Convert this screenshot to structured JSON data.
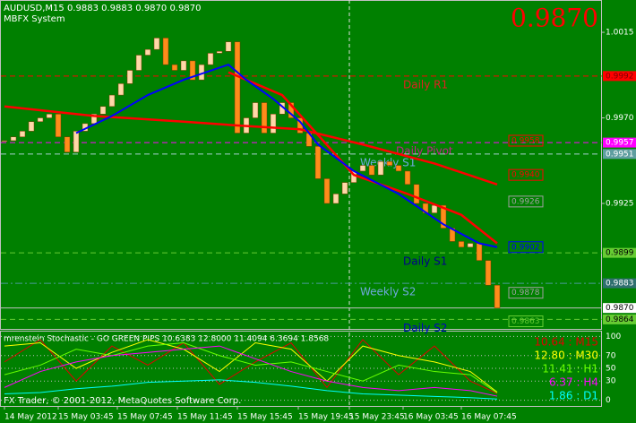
{
  "header": {
    "symbol_line": "AUDUSD,M15  0.9883 0.9883 0.9870 0.9870",
    "system": "MBFX System",
    "big_price": "0.9870"
  },
  "chart_data": [
    {
      "type": "candlestick",
      "x": [
        0,
        1,
        2,
        3,
        4,
        5,
        6,
        7,
        8,
        9,
        10,
        11,
        12,
        13,
        14,
        15,
        16,
        17,
        18,
        19,
        20,
        21,
        22,
        23,
        24,
        25,
        26,
        27,
        28,
        29,
        30,
        31,
        32,
        33,
        34,
        35,
        36,
        37,
        38,
        39,
        40,
        41,
        42,
        43,
        44,
        45,
        46,
        47,
        48,
        49,
        50,
        51,
        52,
        53,
        54,
        55
      ],
      "close": [
        0.9958,
        0.996,
        0.9963,
        0.9968,
        0.997,
        0.9972,
        0.996,
        0.9952,
        0.9963,
        0.9967,
        0.9972,
        0.9976,
        0.9982,
        0.9988,
        0.9995,
        1.0003,
        1.0006,
        1.0012,
        0.9998,
        0.9995,
        1.0,
        0.999,
        0.9998,
        1.0004,
        1.0005,
        1.001,
        0.9962,
        0.997,
        0.9978,
        0.9962,
        0.9972,
        0.9978,
        0.997,
        0.9962,
        0.9955,
        0.9938,
        0.9925,
        0.993,
        0.9936,
        0.9942,
        0.9945,
        0.994,
        0.9947,
        0.9945,
        0.9942,
        0.9935,
        0.9925,
        0.992,
        0.9924,
        0.9912,
        0.9905,
        0.9902,
        0.9904,
        0.9895,
        0.9882,
        0.987
      ],
      "up_color": "#ffd8a8",
      "down_color": "#ff8c1a",
      "series": [
        {
          "color": "#ff0000",
          "x": [
            0,
            10,
            20,
            26,
            33,
            40,
            48,
            55
          ],
          "values": [
            0.9976,
            0.9971,
            0.9968,
            0.9966,
            0.9964,
            0.9956,
            0.9946,
            0.9935
          ]
        },
        {
          "color": "#ff0000",
          "x": [
            25,
            31,
            35,
            39,
            45,
            51,
            55
          ],
          "values": [
            0.9994,
            0.9982,
            0.9961,
            0.994,
            0.993,
            0.9919,
            0.9904
          ]
        },
        {
          "color": "#0000ff",
          "x": [
            8,
            12,
            16,
            20,
            25,
            27,
            30,
            33,
            35,
            39,
            44,
            49,
            53,
            55
          ],
          "values": [
            0.9962,
            0.9971,
            0.9982,
            0.999,
            0.9998,
            0.999,
            0.998,
            0.9968,
            0.9956,
            0.9942,
            0.993,
            0.9914,
            0.9904,
            0.9902
          ]
        }
      ],
      "ylim": [
        0.9859,
        1.0032
      ],
      "yticks": [
        1.0015,
        {
          "value": 0.997,
          "label": "0.9970"
        },
        0.9925
      ],
      "xticks": [
        {
          "value": 0,
          "label": "14 May 2012"
        },
        {
          "value": 6,
          "label": "15 May 03:45"
        },
        {
          "value": 12.6,
          "label": "15 May 07:45"
        },
        {
          "value": 19.3,
          "label": "15 May 11:45"
        },
        {
          "value": 26,
          "label": "15 May 15:45"
        },
        {
          "value": 32.8,
          "label": "15 May 19:45"
        },
        {
          "value": 38.5,
          "label": "15 May 23:45"
        },
        {
          "value": 44.5,
          "label": "16 May 03:45"
        },
        {
          "value": 51,
          "label": "16 May 07:45"
        }
      ],
      "levels": [
        {
          "name": "Daily R1",
          "value": 0.9992,
          "color": "#ff0000",
          "box_color": "#ff0000",
          "text_color": "#800000",
          "text_fill": "#e02020"
        },
        {
          "name": "Daily Pivot",
          "value": 0.9957,
          "color": "#ff00ff",
          "box_color": "#ff00ff",
          "text_color": "#ffffff",
          "text_fill": "#c0208c"
        },
        {
          "name": "Weekly S1",
          "value": 0.9951,
          "color": "#a8d0d0",
          "box_color": "#5f9ea0",
          "text_color": "#ffffff",
          "text_fill": "#6fa8dc"
        },
        {
          "name": "Daily S1",
          "value": 0.9899,
          "color": "#66cc33",
          "box_color": "#66cc33",
          "text_color": "#000000",
          "text_fill": "#00008b"
        },
        {
          "name": "Weekly S2",
          "value": 0.9883,
          "color": "#4a9a9a",
          "box_color": "#2f6f6f",
          "text_color": "#ffffff",
          "text_fill": "#6fa8dc"
        },
        {
          "value": 0.987,
          "label": "0.9870",
          "color": "#c0c0c0",
          "box_color": "#ffffff",
          "text_color": "#000000"
        },
        {
          "name": "Daily S2",
          "value": 0.9864,
          "color": "#66cc33",
          "box_color": "#66cc33",
          "text_color": "#000000",
          "text_fill": "#0000c0"
        }
      ],
      "markers": [
        {
          "value": 0.9958,
          "color": "#ff0000"
        },
        {
          "value": 0.994,
          "label": "0.9940",
          "color": "#ff0000"
        },
        {
          "value": 0.9926,
          "color": "#a0a0a0"
        },
        {
          "value": 0.9902,
          "color": "#0000ff"
        },
        {
          "value": 0.9878,
          "color": "#a0a0a0"
        },
        {
          "value": 0.9863,
          "color": "#66cc33"
        }
      ]
    },
    {
      "type": "line",
      "title": "mrenstein Stochastic - GO GREEN PIPS 10.6383 12.8000 11.4094 6.3694 1.8568",
      "x": [
        0,
        4,
        8,
        12,
        16,
        20,
        24,
        28,
        32,
        36,
        40,
        44,
        48,
        52,
        55
      ],
      "series": [
        {
          "name": "10.64 : M15",
          "color": "#e00000",
          "values": [
            60,
            95,
            30,
            85,
            55,
            90,
            25,
            60,
            90,
            20,
            95,
            40,
            85,
            30,
            10.64
          ]
        },
        {
          "name": "12.80 : M30",
          "color": "#ffff00",
          "values": [
            85,
            90,
            50,
            75,
            95,
            80,
            45,
            90,
            80,
            30,
            85,
            70,
            60,
            45,
            12.8
          ]
        },
        {
          "name": "11.41 : H1",
          "color": "#66ff00",
          "values": [
            40,
            55,
            80,
            70,
            85,
            90,
            70,
            55,
            60,
            45,
            30,
            55,
            45,
            40,
            11.41
          ]
        },
        {
          "name": "6.37 : H4",
          "color": "#ff00ff",
          "values": [
            20,
            45,
            60,
            70,
            75,
            80,
            85,
            65,
            45,
            30,
            20,
            15,
            20,
            15,
            6.37
          ]
        },
        {
          "name": "1.86 : D1",
          "color": "#00ffff",
          "values": [
            10,
            12,
            18,
            22,
            28,
            30,
            32,
            28,
            22,
            15,
            10,
            8,
            6,
            4,
            1.86
          ]
        }
      ],
      "ylim": [
        -9,
        109
      ],
      "yticks": [
        100,
        70,
        50,
        30,
        0
      ],
      "grid": true,
      "footer": "FX Trader, © 2001-2012, MetaQuotes Software Corp."
    }
  ]
}
